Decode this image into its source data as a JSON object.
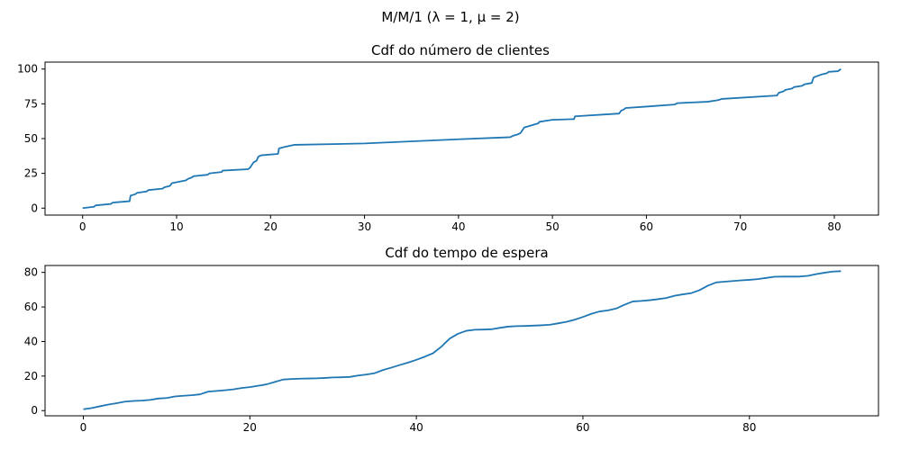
{
  "figure": {
    "suptitle": "M/M/1 (λ = 1, μ = 2)"
  },
  "chart_data": [
    {
      "type": "line",
      "title": "Cdf do número de clientes",
      "xlabel": "",
      "ylabel": "",
      "xlim": [
        -4.0,
        84.7
      ],
      "ylim": [
        -5,
        105
      ],
      "xticks": [
        0,
        10,
        20,
        30,
        40,
        50,
        60,
        70,
        80
      ],
      "yticks": [
        0,
        25,
        50,
        75,
        100
      ],
      "grid": false,
      "color": "#1f77b4",
      "series": [
        {
          "x": [
            0,
            1.2,
            1.4,
            3.0,
            3.2,
            5.0,
            5.1,
            5.6,
            5.8,
            6.8,
            7.0,
            8.5,
            8.7,
            9.3,
            9.5,
            11.0,
            11.2,
            11.6,
            11.8,
            13.3,
            13.5,
            14.8,
            14.9,
            17.6,
            17.8,
            18.0,
            18.2,
            18.5,
            18.7,
            19.0,
            20.8,
            20.9,
            21.5,
            22.5,
            30.0,
            40.0,
            45.5,
            45.8,
            46.3,
            46.6,
            47.0,
            47.5,
            48.5,
            48.6,
            49.5,
            50.0,
            52.3,
            52.4,
            57.1,
            57.3,
            57.6,
            57.8,
            60.0,
            63.0,
            63.3,
            66.5,
            67.5,
            67.8,
            68.0,
            73.9,
            74.1,
            74.6,
            74.8,
            75.5,
            75.7,
            76.6,
            76.8,
            77.6,
            77.8,
            78.2,
            78.6,
            79.2,
            79.4,
            80.4,
            80.5,
            80.7
          ],
          "y": [
            0,
            1,
            2,
            3,
            4,
            5,
            9,
            10,
            11,
            12,
            13,
            14,
            15,
            16,
            18,
            20,
            21,
            22,
            23,
            24,
            25,
            26,
            27,
            28,
            29,
            31,
            33,
            34,
            37,
            38,
            39,
            43,
            44,
            45.5,
            46.5,
            49.5,
            51,
            52,
            53,
            54,
            58,
            59,
            61,
            62,
            63,
            63.5,
            64,
            66,
            68,
            70,
            71,
            72,
            73,
            74.5,
            75.5,
            76.5,
            77.5,
            78,
            78.5,
            81,
            83,
            84,
            85,
            86,
            87,
            88,
            89,
            90,
            94,
            95,
            96,
            97,
            98,
            98.5,
            99,
            100
          ]
        }
      ]
    },
    {
      "type": "line",
      "title": "Cdf do tempo de espera",
      "xlabel": "",
      "ylabel": "",
      "xlim": [
        -4.6,
        95.5
      ],
      "ylim": [
        -3,
        84
      ],
      "xticks": [
        0,
        20,
        40,
        60,
        80
      ],
      "yticks": [
        0,
        20,
        40,
        60,
        80
      ],
      "grid": false,
      "color": "#1f77b4",
      "series": [
        {
          "x": [
            0,
            1,
            2,
            3,
            4,
            5,
            6,
            7,
            8,
            9,
            10,
            11,
            12,
            13,
            14,
            15,
            16,
            17,
            18,
            19,
            20,
            21,
            22,
            23,
            24,
            25,
            26,
            27,
            28,
            29,
            30,
            31,
            32,
            33,
            34,
            35,
            36,
            37,
            38,
            39,
            40,
            41,
            42,
            43,
            44,
            45,
            46,
            47,
            48,
            49,
            50,
            51,
            52,
            53,
            54,
            55,
            56,
            57,
            58,
            59,
            60,
            61,
            62,
            63,
            64,
            65,
            66,
            67,
            68,
            69,
            70,
            71,
            72,
            73,
            74,
            75,
            76,
            77,
            78,
            79,
            80,
            81,
            82,
            83,
            84,
            85,
            86,
            87,
            88,
            89,
            90,
            91
          ],
          "y": [
            0.8,
            1.5,
            2.5,
            3.5,
            4.3,
            5.2,
            5.6,
            5.8,
            6.2,
            7.0,
            7.3,
            8.2,
            8.6,
            8.9,
            9.4,
            11.0,
            11.4,
            11.8,
            12.3,
            13.1,
            13.6,
            14.4,
            15.2,
            16.6,
            18.0,
            18.3,
            18.5,
            18.6,
            18.7,
            18.9,
            19.2,
            19.3,
            19.5,
            20.3,
            20.9,
            21.7,
            23.5,
            24.9,
            26.4,
            27.8,
            29.4,
            31.2,
            33.2,
            37.0,
            41.7,
            44.5,
            46.2,
            46.8,
            46.9,
            47.1,
            47.9,
            48.6,
            48.9,
            49.0,
            49.2,
            49.4,
            49.7,
            50.5,
            51.4,
            52.6,
            54.2,
            56.0,
            57.4,
            58.0,
            59.1,
            61.3,
            63.2,
            63.5,
            63.9,
            64.5,
            65.2,
            66.5,
            67.3,
            68.0,
            69.7,
            72.3,
            74.2,
            74.6,
            75.0,
            75.4,
            75.7,
            76.1,
            76.8,
            77.5,
            77.6,
            77.6,
            77.6,
            78.0,
            79.0,
            79.8,
            80.5,
            80.7
          ]
        }
      ]
    }
  ]
}
